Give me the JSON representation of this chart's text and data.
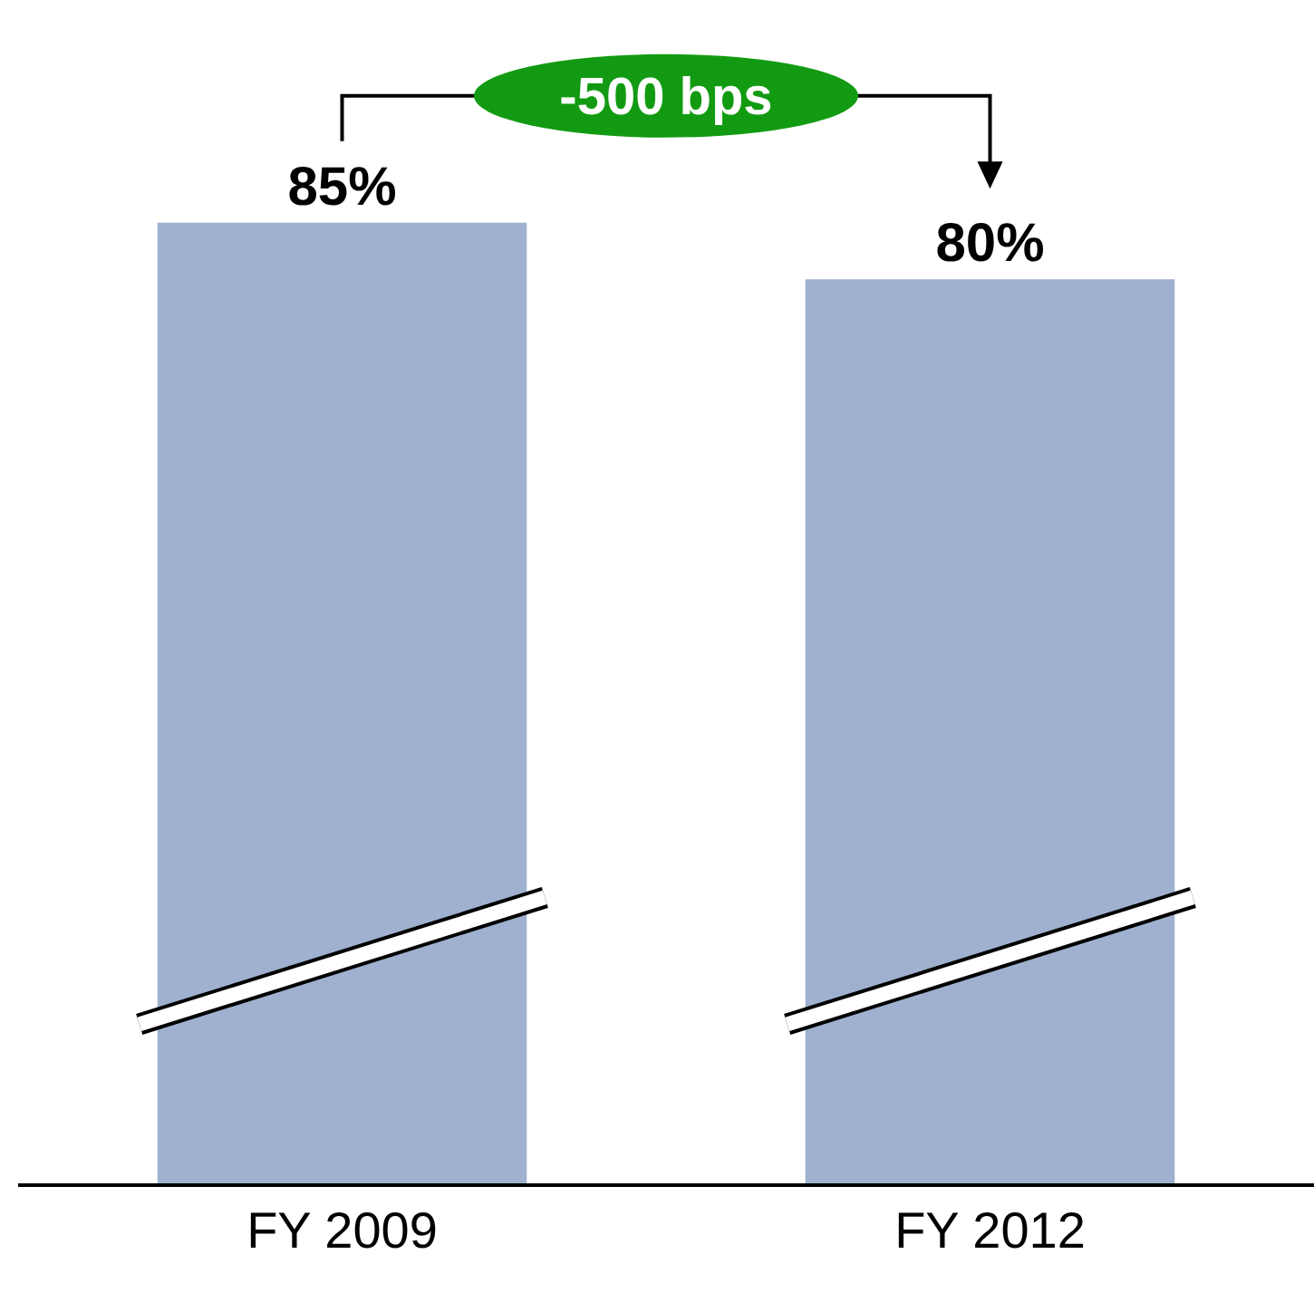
{
  "chart_data": {
    "type": "bar",
    "categories": [
      "FY 2009",
      "FY 2012"
    ],
    "values": [
      85,
      80
    ],
    "color": "#9fb1cf",
    "data_labels": true,
    "value_labels": [
      "85%",
      "80%"
    ],
    "annotations": [
      "-500 bps"
    ],
    "grid": false
  }
}
